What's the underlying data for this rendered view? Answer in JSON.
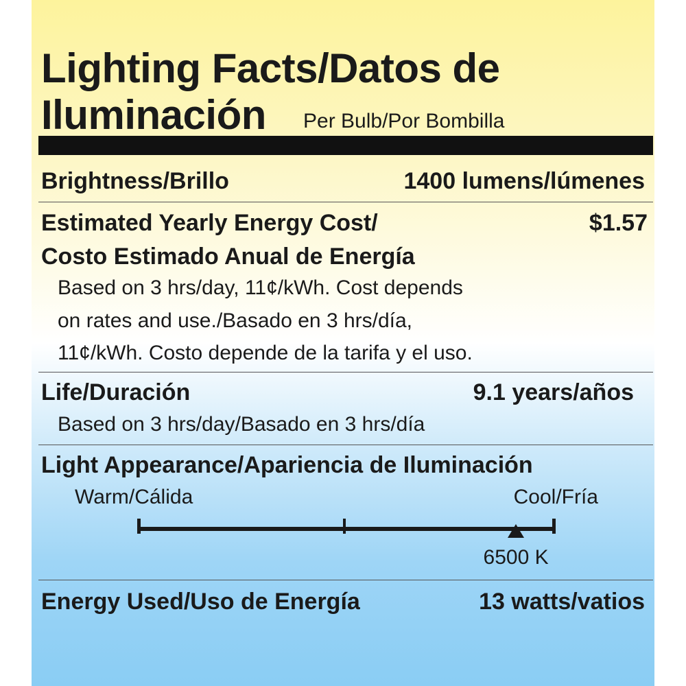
{
  "title": {
    "line1": "Lighting Facts/Datos de",
    "line2": "Iluminación",
    "per_bulb": "Per Bulb/Por Bombilla"
  },
  "brightness": {
    "label": "Brightness/Brillo",
    "value": "1400 lumens/lúmenes"
  },
  "cost": {
    "label_line1": "Estimated Yearly Energy Cost/",
    "label_line2": "Costo Estimado Anual de Energía",
    "value": "$1.57",
    "note_lines": [
      "Based on 3 hrs/day, 11¢/kWh. Cost depends",
      "on rates and use./Basado en 3 hrs/día,",
      "11¢/kWh. Costo depende de la tarifa y el uso."
    ]
  },
  "life": {
    "label": "Life/Duración",
    "value": "9.1 years/años",
    "note": "Based on 3 hrs/day/Basado en 3 hrs/día"
  },
  "appearance": {
    "label": "Light Appearance/Apariencia de Iluminación",
    "warm": "Warm/Cálida",
    "cool": "Cool/Fría",
    "marker_value": "6500 K",
    "marker_fraction": 0.905
  },
  "energy": {
    "label": "Energy Used/Uso de Energía",
    "value": "13 watts/vatios"
  }
}
